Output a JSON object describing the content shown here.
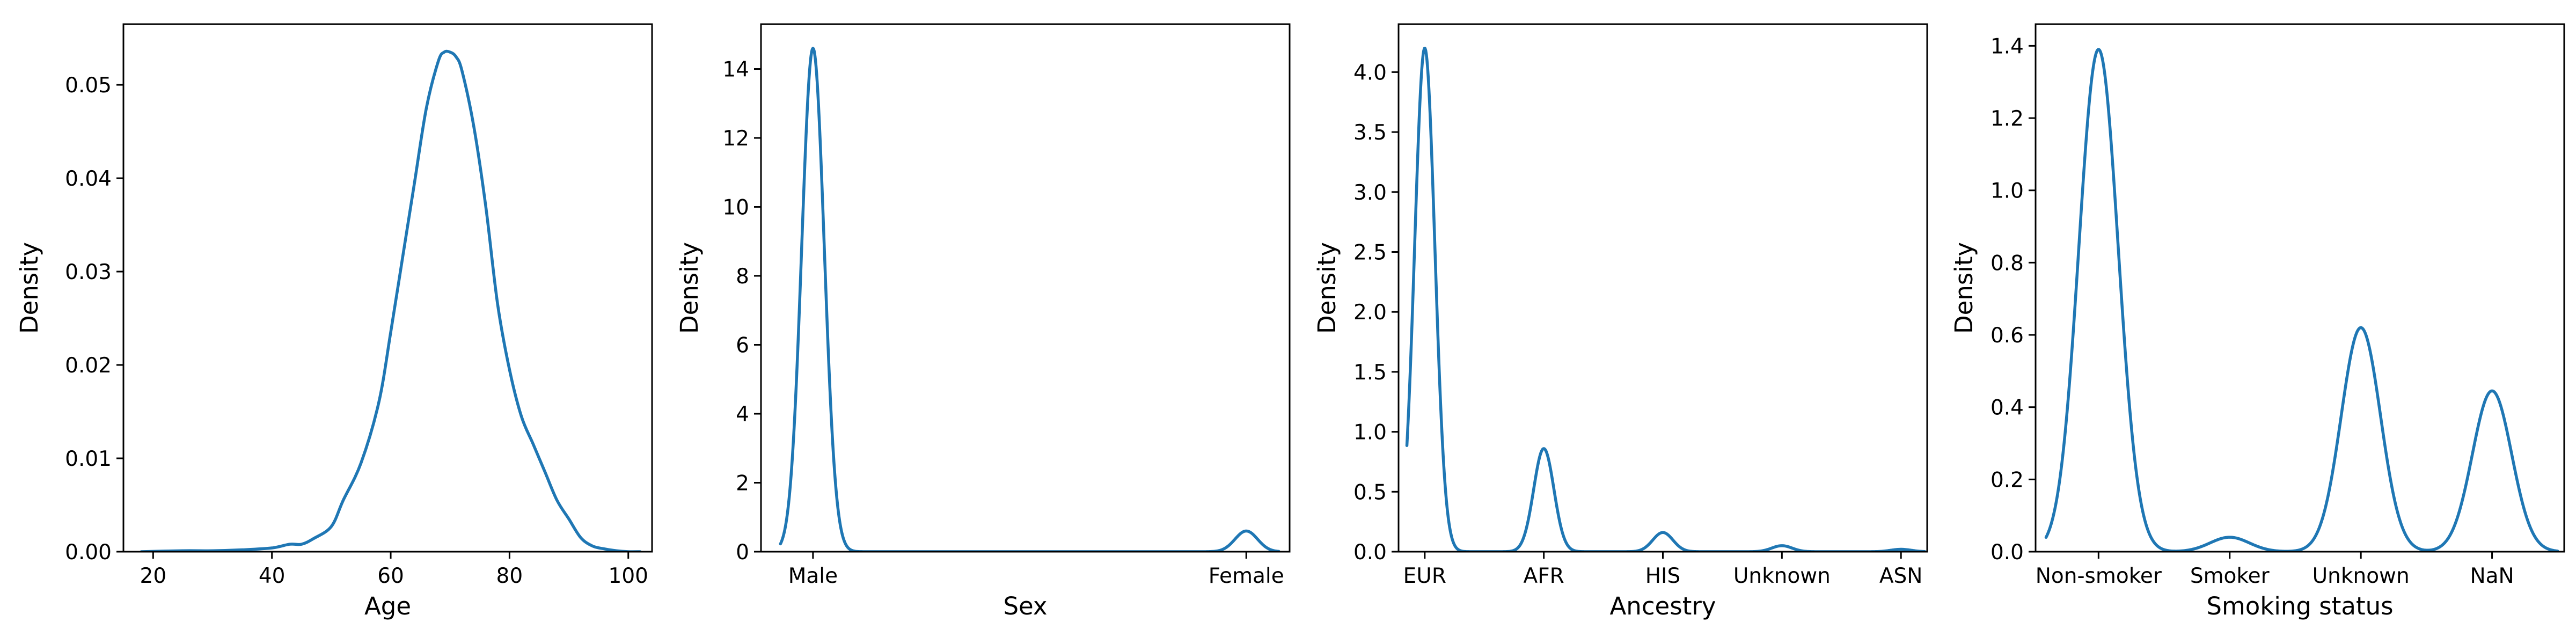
{
  "chart_data": [
    {
      "type": "line",
      "xlabel": "Age",
      "ylabel": "Density",
      "xlim": [
        15,
        104
      ],
      "ylim": [
        0,
        0.0565
      ],
      "xticks": [
        20,
        40,
        60,
        80,
        100
      ],
      "xtick_labels": [
        "20",
        "40",
        "60",
        "80",
        "100"
      ],
      "yticks": [
        0.0,
        0.01,
        0.02,
        0.03,
        0.04,
        0.05
      ],
      "ytick_labels": [
        "0.00",
        "0.01",
        "0.02",
        "0.03",
        "0.04",
        "0.05"
      ],
      "grid": false,
      "color": "#1f77b4",
      "series": [
        {
          "x": [
            18,
            25,
            30,
            35,
            40,
            43,
            45,
            47,
            50,
            52,
            55,
            58,
            60,
            62,
            64,
            66,
            68,
            69,
            70,
            71,
            72,
            74,
            76,
            78,
            80,
            82,
            84,
            86,
            88,
            90,
            92,
            94,
            96,
            98,
            100,
            102
          ],
          "y": [
            0.0,
            0.0001,
            0.0001,
            0.0002,
            0.0004,
            0.0008,
            0.0008,
            0.0014,
            0.0027,
            0.0055,
            0.0095,
            0.016,
            0.0235,
            0.0315,
            0.0395,
            0.0475,
            0.0525,
            0.0535,
            0.0535,
            0.053,
            0.0515,
            0.0455,
            0.037,
            0.0265,
            0.0195,
            0.0145,
            0.0115,
            0.0085,
            0.0055,
            0.0035,
            0.0015,
            0.0006,
            0.0003,
            0.0001,
            0.0,
            0.0
          ]
        }
      ]
    },
    {
      "type": "line",
      "xlabel": "Sex",
      "ylabel": "Density",
      "xlim": [
        -0.12,
        1.1
      ],
      "ylim": [
        0,
        15.3
      ],
      "xticks": [
        0,
        1
      ],
      "xtick_labels": [
        "Male",
        "Female"
      ],
      "yticks": [
        0,
        2,
        4,
        6,
        8,
        10,
        12,
        14
      ],
      "ytick_labels": [
        "0",
        "2",
        "4",
        "6",
        "8",
        "10",
        "12",
        "14"
      ],
      "grid": false,
      "color": "#1f77b4",
      "peaks": [
        {
          "center": 0.0,
          "height": 14.6,
          "sigma": 0.026
        },
        {
          "center": 1.0,
          "height": 0.6,
          "sigma": 0.026
        }
      ],
      "x_range": [
        -0.075,
        1.075
      ]
    },
    {
      "type": "line",
      "xlabel": "Ancestry",
      "ylabel": "Density",
      "xlim": [
        -0.22,
        4.22
      ],
      "ylim": [
        0,
        4.4
      ],
      "xticks": [
        0,
        1,
        2,
        3,
        4
      ],
      "xtick_labels": [
        "EUR",
        "AFR",
        "HIS",
        "Unknown",
        "ASN"
      ],
      "yticks": [
        0.0,
        0.5,
        1.0,
        1.5,
        2.0,
        2.5,
        3.0,
        3.5,
        4.0
      ],
      "ytick_labels": [
        "0.0",
        "0.5",
        "1.0",
        "1.5",
        "2.0",
        "2.5",
        "3.0",
        "3.5",
        "4.0"
      ],
      "grid": false,
      "color": "#1f77b4",
      "peaks": [
        {
          "center": 0.0,
          "height": 4.2,
          "sigma": 0.085
        },
        {
          "center": 1.0,
          "height": 0.86,
          "sigma": 0.085
        },
        {
          "center": 2.0,
          "height": 0.16,
          "sigma": 0.085
        },
        {
          "center": 3.0,
          "height": 0.05,
          "sigma": 0.085
        },
        {
          "center": 4.0,
          "height": 0.02,
          "sigma": 0.085
        }
      ],
      "x_range": [
        -0.15,
        4.2
      ]
    },
    {
      "type": "line",
      "xlabel": "Smoking status",
      "ylabel": "Density",
      "xlim": [
        -0.48,
        3.55
      ],
      "ylim": [
        0,
        1.46
      ],
      "xticks": [
        0,
        1,
        2,
        3
      ],
      "xtick_labels": [
        "Non-smoker",
        "Smoker",
        "Unknown",
        "NaN"
      ],
      "yticks": [
        0.0,
        0.2,
        0.4,
        0.6,
        0.8,
        1.0,
        1.2,
        1.4
      ],
      "ytick_labels": [
        "0.0",
        "0.2",
        "0.4",
        "0.6",
        "0.8",
        "1.0",
        "1.2",
        "1.4"
      ],
      "grid": false,
      "color": "#1f77b4",
      "peaks": [
        {
          "center": 0.0,
          "height": 1.39,
          "sigma": 0.15
        },
        {
          "center": 1.0,
          "height": 0.04,
          "sigma": 0.15
        },
        {
          "center": 2.0,
          "height": 0.62,
          "sigma": 0.15
        },
        {
          "center": 3.0,
          "height": 0.445,
          "sigma": 0.15
        }
      ],
      "x_range": [
        -0.4,
        3.5
      ]
    }
  ]
}
